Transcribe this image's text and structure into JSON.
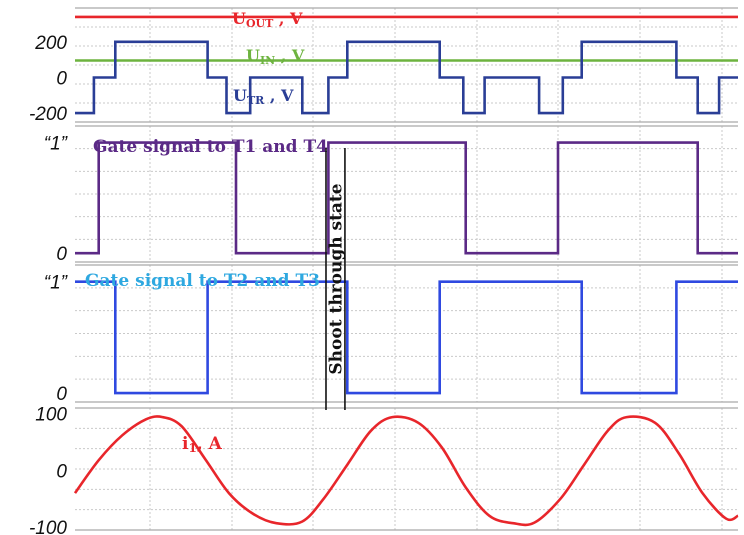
{
  "chart_data": [
    {
      "type": "line",
      "x_range": [
        0,
        2.8
      ],
      "ylim": [
        -250,
        390
      ],
      "yticks": [
        {
          "label": "200",
          "value": 200
        },
        {
          "label": "0",
          "value": 0
        },
        {
          "label": "-200",
          "value": -200
        }
      ],
      "grid": true,
      "series": [
        {
          "name": "Uout",
          "label_main": "U",
          "label_sub": "OUT",
          "label_unit": " , V",
          "color": "#e8262b",
          "x": [
            0,
            2.8
          ],
          "y": [
            340,
            340
          ]
        },
        {
          "name": "Uin",
          "label_main": "U",
          "label_sub": "IN",
          "label_unit": " , V",
          "color": "#6db33f",
          "x": [
            0,
            2.8
          ],
          "y": [
            95,
            95
          ]
        },
        {
          "name": "Utr",
          "label_main": "U",
          "label_sub": "TR",
          "label_unit": " , V",
          "color": "#2a3e96",
          "x": [
            0.0,
            0.08,
            0.08,
            0.17,
            0.17,
            0.56,
            0.56,
            0.64,
            0.64,
            0.74,
            0.74,
            0.96,
            0.96,
            1.07,
            1.07,
            1.15,
            1.15,
            1.54,
            1.54,
            1.64,
            1.64,
            1.73,
            1.73,
            1.96,
            1.96,
            2.06,
            2.06,
            2.14,
            2.14,
            2.54,
            2.54,
            2.63,
            2.63,
            2.72,
            2.72,
            2.8
          ],
          "y": [
            -200,
            -200,
            0,
            0,
            200,
            200,
            0,
            0,
            -200,
            -200,
            0,
            0,
            -200,
            -200,
            0,
            0,
            200,
            200,
            0,
            0,
            -200,
            -200,
            0,
            0,
            -200,
            -200,
            0,
            0,
            200,
            200,
            0,
            0,
            -200,
            -200,
            0,
            0
          ]
        }
      ]
    },
    {
      "type": "line",
      "title": "Gate signal to T1 and T4",
      "title_color": "#5b2a86",
      "x_range": [
        0,
        2.8
      ],
      "ylim": [
        -0.08,
        1.15
      ],
      "yticks": [
        {
          "label": "“1”",
          "value": 1
        },
        {
          "label": "0",
          "value": 0
        }
      ],
      "grid": true,
      "series": [
        {
          "name": "Gate signal to T1 and T4",
          "color": "#5b2a86",
          "x": [
            0.0,
            0.1,
            0.1,
            0.68,
            0.68,
            1.07,
            1.07,
            1.65,
            1.65,
            2.04,
            2.04,
            2.63,
            2.63,
            2.8
          ],
          "y": [
            0,
            0,
            1,
            1,
            0,
            0,
            1,
            1,
            0,
            0,
            1,
            1,
            0,
            0
          ]
        }
      ]
    },
    {
      "type": "line",
      "title": "Gate signal to T2 and T3",
      "title_color": "#2ea8e0",
      "x_range": [
        0,
        2.8
      ],
      "ylim": [
        -0.08,
        1.15
      ],
      "yticks": [
        {
          "label": "“1”",
          "value": 1
        },
        {
          "label": "0",
          "value": 0
        }
      ],
      "grid": true,
      "series": [
        {
          "name": "Gate signal to T2 and T3",
          "color": "#2f49e0",
          "x": [
            0.0,
            0.17,
            0.17,
            0.56,
            0.56,
            1.15,
            1.15,
            1.54,
            1.54,
            2.14,
            2.14,
            2.54,
            2.54,
            2.8
          ],
          "y": [
            1,
            1,
            0,
            0,
            1,
            1,
            0,
            0,
            1,
            1,
            0,
            0,
            1,
            1
          ]
        }
      ]
    },
    {
      "type": "line",
      "x_range": [
        0,
        2.8
      ],
      "ylim": [
        -105,
        110
      ],
      "yticks": [
        {
          "label": "100",
          "value": 100
        },
        {
          "label": "0",
          "value": 0
        },
        {
          "label": "-100",
          "value": -100
        }
      ],
      "grid": true,
      "series": [
        {
          "name": "i1",
          "label_main": "i",
          "label_sub": "1",
          "label_unit": ", A",
          "color": "#e8262b",
          "x": [
            0.0,
            0.1,
            0.2,
            0.3,
            0.37,
            0.45,
            0.55,
            0.65,
            0.75,
            0.85,
            0.96,
            1.05,
            1.15,
            1.25,
            1.34,
            1.45,
            1.55,
            1.65,
            1.75,
            1.85,
            1.94,
            2.05,
            2.15,
            2.25,
            2.33,
            2.45,
            2.55,
            2.65,
            2.75,
            2.8
          ],
          "y": [
            -40,
            18,
            62,
            90,
            94,
            78,
            20,
            -40,
            -76,
            -93,
            -90,
            -50,
            10,
            70,
            94,
            84,
            40,
            -30,
            -80,
            -93,
            -92,
            -50,
            10,
            70,
            94,
            84,
            30,
            -40,
            -85,
            -80
          ]
        }
      ],
      "annotation": {
        "text": "Shoot through state",
        "x_range": [
          1.06,
          1.14
        ]
      }
    }
  ]
}
